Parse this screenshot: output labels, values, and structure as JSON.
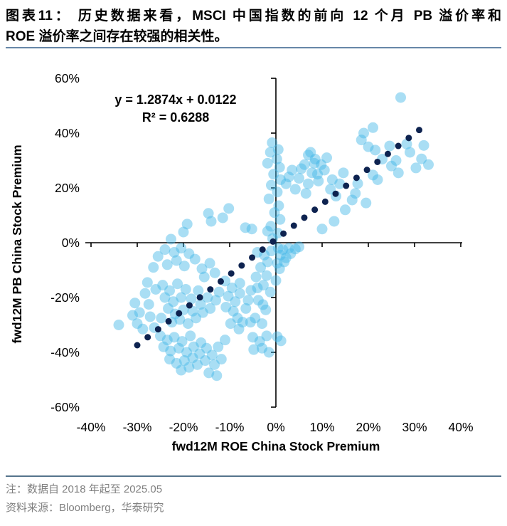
{
  "header": {
    "title_line1": "图表11：  历史数据来看，MSCI 中国指数的前向 12 个月 PB 溢价率和",
    "title_line2": "ROE 溢价率之间存在较强的相关性。"
  },
  "footnotes": {
    "note": "注：数据自 2018 年起至 2025.05",
    "source": "资料来源：Bloomberg，华泰研究"
  },
  "colors": {
    "divider_top": "#6787a8",
    "divider_bottom": "#56748c",
    "axis": "#000000",
    "tick_label": "#000000",
    "point": "#41b6e6",
    "trend": "#0e2350",
    "note_text": "#808080",
    "title_text": "#000000"
  },
  "chart_data": {
    "type": "scatter",
    "xlabel": "fwd12M ROE China Stock Premium",
    "ylabel": "fwd12M PB China Stock Premium",
    "xlim": [
      -40,
      40
    ],
    "ylim": [
      -60,
      60
    ],
    "x_tick_step": 10,
    "y_tick_step": 20,
    "tick_suffix": "%",
    "grid": false,
    "legend": "none",
    "annotation": {
      "equation": "y = 1.2874x + 0.0122",
      "r_squared": "R² = 0.6288"
    },
    "trendline": {
      "style": "dotted",
      "slope": 1.2874,
      "intercept_pct": 1.22,
      "x_start_pct": -30,
      "x_end_pct": 31,
      "dot_count": 28
    },
    "points": [
      [
        -22.7,
        1.3
      ],
      [
        -20.0,
        3.9
      ],
      [
        -19.2,
        6.8
      ],
      [
        -14.6,
        10.7
      ],
      [
        -14.0,
        7.8
      ],
      [
        -11.5,
        9.1
      ],
      [
        -10.2,
        12.5
      ],
      [
        -6.6,
        5.5
      ],
      [
        -5.2,
        5.0
      ],
      [
        -1.8,
        4.2
      ],
      [
        -0.8,
        36.5
      ],
      [
        0.5,
        34.0
      ],
      [
        -1.2,
        33.0
      ],
      [
        0.2,
        30.5
      ],
      [
        -1.8,
        29.0
      ],
      [
        0.8,
        27.5
      ],
      [
        -0.5,
        25.0
      ],
      [
        1.0,
        23.0
      ],
      [
        -1.0,
        21.0
      ],
      [
        0.3,
        18.5
      ],
      [
        -1.5,
        16.0
      ],
      [
        0.6,
        13.5
      ],
      [
        -0.3,
        11.0
      ],
      [
        0.9,
        8.5
      ],
      [
        -1.1,
        6.0
      ],
      [
        0.4,
        3.5
      ],
      [
        -0.7,
        1.5
      ],
      [
        3.5,
        26.5
      ],
      [
        5.5,
        27.0
      ],
      [
        7.5,
        33.0
      ],
      [
        8.3,
        29.0
      ],
      [
        5.0,
        23.5
      ],
      [
        7.0,
        21.5
      ],
      [
        9.0,
        25.0
      ],
      [
        10.5,
        26.5
      ],
      [
        12.2,
        23.0
      ],
      [
        13.8,
        21.5
      ],
      [
        4.2,
        19.5
      ],
      [
        6.5,
        18.0
      ],
      [
        2.2,
        21.5
      ],
      [
        2.8,
        24.0
      ],
      [
        7.0,
        32.0
      ],
      [
        8.5,
        30.5
      ],
      [
        6.2,
        28.5
      ],
      [
        9.8,
        28.5
      ],
      [
        11.0,
        31.0
      ],
      [
        7.8,
        25.5
      ],
      [
        9.2,
        22.5
      ],
      [
        11.8,
        19.5
      ],
      [
        14.6,
        25.5
      ],
      [
        17.7,
        21.6
      ],
      [
        21.0,
        24.7
      ],
      [
        22.0,
        23.0
      ],
      [
        17.2,
        18.0
      ],
      [
        16.5,
        15.6
      ],
      [
        12.6,
        7.8
      ],
      [
        15.0,
        12.0
      ],
      [
        19.5,
        14.5
      ],
      [
        10.0,
        5.0
      ],
      [
        13.0,
        17.0
      ],
      [
        27.0,
        53.0
      ],
      [
        21.0,
        42.0
      ],
      [
        19.0,
        40.0
      ],
      [
        24.6,
        35.3
      ],
      [
        28.3,
        36.0
      ],
      [
        21.5,
        33.8
      ],
      [
        31.5,
        30.6
      ],
      [
        26.0,
        30.0
      ],
      [
        30.3,
        27.3
      ],
      [
        25.0,
        28.0
      ],
      [
        23.0,
        30.5
      ],
      [
        29.0,
        33.0
      ],
      [
        32.0,
        35.5
      ],
      [
        18.5,
        37.5
      ],
      [
        20.0,
        35.0
      ],
      [
        33.0,
        28.5
      ],
      [
        26.5,
        25.5
      ],
      [
        0.5,
        -2.0
      ],
      [
        1.5,
        -2.5
      ],
      [
        2.8,
        -2.0
      ],
      [
        4.2,
        -2.3
      ],
      [
        5.0,
        -1.5
      ],
      [
        1.0,
        -4.5
      ],
      [
        2.2,
        -5.5
      ],
      [
        0.3,
        -7.5
      ],
      [
        3.2,
        -4.0
      ],
      [
        0.0,
        -13.8
      ],
      [
        0.8,
        -9.5
      ],
      [
        1.8,
        -7.0
      ],
      [
        0.3,
        -34.3
      ],
      [
        1.1,
        -35.8
      ],
      [
        -1.0,
        -3.0
      ],
      [
        -2.5,
        -4.5
      ],
      [
        -4.0,
        -3.5
      ],
      [
        -1.8,
        -7.0
      ],
      [
        -3.3,
        -9.0
      ],
      [
        -2.0,
        -12.0
      ],
      [
        -4.3,
        -12.5
      ],
      [
        -2.7,
        -15.5
      ],
      [
        -1.2,
        -18.0
      ],
      [
        -3.8,
        -21.0
      ],
      [
        -2.2,
        -24.5
      ],
      [
        -4.5,
        -27.5
      ],
      [
        -3.0,
        -29.5
      ],
      [
        -5.0,
        -34.5
      ],
      [
        -3.5,
        -36.0
      ],
      [
        -2.0,
        -34.0
      ],
      [
        -3.0,
        -38.5
      ],
      [
        -1.5,
        -40.0
      ],
      [
        -4.8,
        -39.0
      ],
      [
        -24.0,
        -2.5
      ],
      [
        -22.0,
        -3.5
      ],
      [
        -20.5,
        -2.0
      ],
      [
        -18.8,
        -4.0
      ],
      [
        -21.5,
        -6.5
      ],
      [
        -23.5,
        -8.0
      ],
      [
        -19.8,
        -8.5
      ],
      [
        -17.5,
        -6.0
      ],
      [
        -16.0,
        -9.5
      ],
      [
        -14.3,
        -7.5
      ],
      [
        -13.2,
        -11.0
      ],
      [
        -15.5,
        -12.5
      ],
      [
        -25.5,
        -5.0
      ],
      [
        -26.5,
        -9.0
      ],
      [
        -30.5,
        -22.0
      ],
      [
        -29.5,
        -25.5
      ],
      [
        -28.3,
        -18.5
      ],
      [
        -27.5,
        -22.5
      ],
      [
        -30.0,
        -29.5
      ],
      [
        -28.8,
        -31.5
      ],
      [
        -27.2,
        -27.0
      ],
      [
        -26.3,
        -31.0
      ],
      [
        -34.0,
        -30.0
      ],
      [
        -27.8,
        -14.5
      ],
      [
        -26.0,
        -17.0
      ],
      [
        -31.0,
        -26.5
      ],
      [
        -24.5,
        -15.5
      ],
      [
        -23.0,
        -17.5
      ],
      [
        -21.3,
        -15.0
      ],
      [
        -19.5,
        -17.0
      ],
      [
        -24.0,
        -20.0
      ],
      [
        -22.2,
        -21.5
      ],
      [
        -20.5,
        -20.0
      ],
      [
        -18.3,
        -20.5
      ],
      [
        -16.8,
        -17.5
      ],
      [
        -23.3,
        -24.0
      ],
      [
        -21.8,
        -26.0
      ],
      [
        -20.0,
        -24.5
      ],
      [
        -18.0,
        -25.0
      ],
      [
        -16.3,
        -22.5
      ],
      [
        -14.8,
        -20.0
      ],
      [
        -24.8,
        -27.5
      ],
      [
        -22.5,
        -29.0
      ],
      [
        -20.8,
        -28.0
      ],
      [
        -19.0,
        -29.5
      ],
      [
        -17.3,
        -27.5
      ],
      [
        -15.8,
        -25.5
      ],
      [
        -14.2,
        -24.0
      ],
      [
        -13.0,
        -21.0
      ],
      [
        -12.3,
        -18.0
      ],
      [
        -25.0,
        -34.0
      ],
      [
        -23.5,
        -35.5
      ],
      [
        -22.0,
        -34.5
      ],
      [
        -20.3,
        -36.0
      ],
      [
        -18.5,
        -34.0
      ],
      [
        -24.3,
        -38.0
      ],
      [
        -22.8,
        -39.5
      ],
      [
        -21.0,
        -38.5
      ],
      [
        -19.3,
        -40.0
      ],
      [
        -17.8,
        -38.0
      ],
      [
        -16.2,
        -36.5
      ],
      [
        -23.0,
        -42.5
      ],
      [
        -21.5,
        -44.0
      ],
      [
        -19.8,
        -43.0
      ],
      [
        -18.0,
        -42.0
      ],
      [
        -16.5,
        -40.5
      ],
      [
        -15.0,
        -38.5
      ],
      [
        -20.5,
        -46.5
      ],
      [
        -18.8,
        -45.5
      ],
      [
        -17.0,
        -44.5
      ],
      [
        -15.3,
        -43.0
      ],
      [
        -13.8,
        -41.0
      ],
      [
        -12.5,
        -38.0
      ],
      [
        -11.0,
        -35.5
      ],
      [
        -13.3,
        -44.5
      ],
      [
        -11.8,
        -42.5
      ],
      [
        -14.5,
        -47.5
      ],
      [
        -12.8,
        -48.5
      ],
      [
        -11.0,
        -14.0
      ],
      [
        -9.5,
        -16.5
      ],
      [
        -10.3,
        -19.5
      ],
      [
        -8.8,
        -21.5
      ],
      [
        -10.8,
        -23.5
      ],
      [
        -9.2,
        -25.0
      ],
      [
        -7.8,
        -18.5
      ],
      [
        -8.3,
        -27.5
      ],
      [
        -9.8,
        -29.5
      ],
      [
        -7.2,
        -29.0
      ],
      [
        -8.0,
        -31.5
      ],
      [
        -6.5,
        -24.0
      ],
      [
        -7.8,
        -14.8
      ],
      [
        -5.4,
        -17.4
      ],
      [
        -4.0,
        -16.5
      ],
      [
        -2.8,
        -22.6
      ],
      [
        -6.0,
        -21.0
      ],
      [
        -5.5,
        -29.0
      ]
    ]
  }
}
